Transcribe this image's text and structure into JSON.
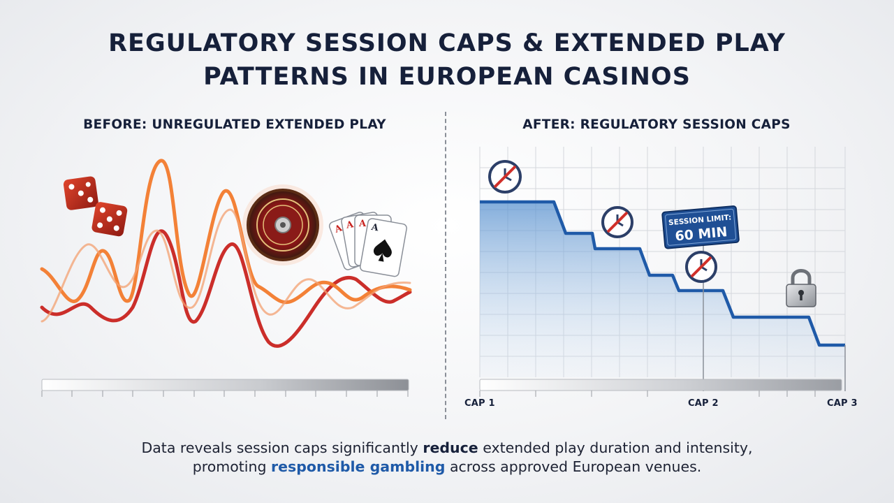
{
  "title": {
    "line1": "REGULATORY SESSION CAPS & EXTENDED PLAY",
    "line2": "PATTERNS IN EUROPEAN CASINOS"
  },
  "before": {
    "heading": "BEFORE: UNREGULATED EXTENDED PLAY",
    "icons": [
      "dice-icon",
      "roulette-wheel-icon",
      "playing-cards-icon"
    ],
    "card_rank": "A",
    "wave_colors": [
      "#e8502a",
      "#f0832e",
      "#c0231f"
    ]
  },
  "after": {
    "heading": "AFTER: REGULATORY SESSION CAPS",
    "badge": {
      "line1": "SESSION LIMIT:",
      "line2": "60 MIN"
    },
    "caps": [
      "CAP 1",
      "CAP 2",
      "CAP 3"
    ],
    "icons": [
      "no-clock-icon",
      "padlock-icon"
    ],
    "line_color": "#1f5aa8"
  },
  "footer": {
    "line1_a": "Data reveals session caps significantly ",
    "line1_b": "reduce",
    "line1_c": " extended play duration and intensity,",
    "line2_a": "promoting ",
    "line2_b": "responsible gambling",
    "line2_c": " across approved European venues."
  }
}
